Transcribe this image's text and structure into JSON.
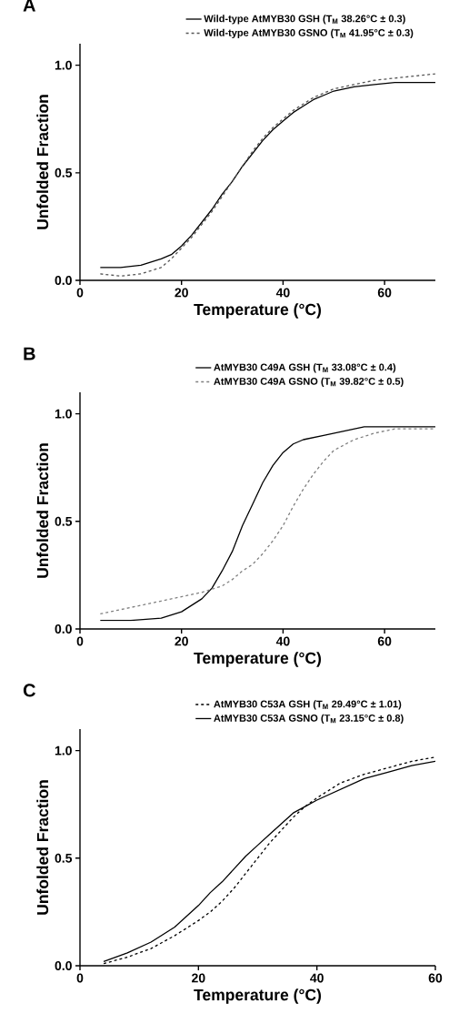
{
  "chart_data": [
    {
      "type": "line",
      "title": "A",
      "xlabel": "Temperature (°C)",
      "ylabel": "Unfolded Fraction",
      "xlim": [
        0,
        70
      ],
      "ylim": [
        0,
        1.1
      ],
      "xticks": [
        0,
        20,
        40,
        60
      ],
      "yticks": [
        {
          "value": 0,
          "label": "0.0"
        },
        {
          "value": 0.5,
          "label": "0.5"
        },
        {
          "value": 1,
          "label": "1.0"
        }
      ],
      "legend": "top",
      "marker": "none",
      "x": [
        4,
        8,
        12,
        16,
        18,
        20,
        22,
        24,
        26,
        28,
        30,
        32,
        34,
        36,
        38,
        40,
        42,
        44,
        46,
        48,
        50,
        54,
        58,
        62,
        66,
        70
      ],
      "series": [
        {
          "name": "Wild-type AtMYB30 GSH (T$_{M}$ 38.26°C ± 0.3)",
          "color": "#000000",
          "line_style": "solid",
          "values": [
            0.06,
            0.06,
            0.07,
            0.1,
            0.12,
            0.16,
            0.21,
            0.27,
            0.33,
            0.4,
            0.46,
            0.53,
            0.59,
            0.65,
            0.7,
            0.74,
            0.78,
            0.81,
            0.84,
            0.86,
            0.88,
            0.9,
            0.91,
            0.92,
            0.92,
            0.92
          ]
        },
        {
          "name": "Wild-type AtMYB30 GSNO (T$_{M}$ 41.95°C ± 0.3)",
          "color": "#555555",
          "line_style": "dashed",
          "values": [
            0.03,
            0.02,
            0.03,
            0.06,
            0.1,
            0.15,
            0.2,
            0.26,
            0.32,
            0.39,
            0.46,
            0.53,
            0.6,
            0.66,
            0.71,
            0.75,
            0.79,
            0.82,
            0.85,
            0.87,
            0.89,
            0.91,
            0.93,
            0.94,
            0.95,
            0.96
          ]
        }
      ]
    },
    {
      "type": "line",
      "title": "B",
      "xlabel": "Temperature (°C)",
      "ylabel": "Unfolded Fraction",
      "xlim": [
        0,
        70
      ],
      "ylim": [
        0,
        1.1
      ],
      "xticks": [
        0,
        20,
        40,
        60
      ],
      "yticks": [
        {
          "value": 0,
          "label": "0.0"
        },
        {
          "value": 0.5,
          "label": "0.5"
        },
        {
          "value": 1,
          "label": "1.0"
        }
      ],
      "legend": "top",
      "marker": "none",
      "series": [
        {
          "name": "AtMYB30 C49A GSH (T$_{M}$ 33.08°C ± 0.4)",
          "color": "#000000",
          "line_style": "solid",
          "x": [
            4,
            10,
            16,
            20,
            24,
            26,
            28,
            30,
            32,
            34,
            36,
            38,
            40,
            42,
            44,
            48,
            52,
            56,
            60,
            66,
            70
          ],
          "values": [
            0.04,
            0.04,
            0.05,
            0.08,
            0.14,
            0.19,
            0.27,
            0.36,
            0.48,
            0.58,
            0.68,
            0.76,
            0.82,
            0.86,
            0.88,
            0.9,
            0.92,
            0.94,
            0.94,
            0.94,
            0.94
          ]
        },
        {
          "name": "AtMYB30 C49A GSNO (T$_{M}$ 39.82°C ± 0.5)",
          "color": "#808080",
          "line_style": "dashed",
          "x": [
            4,
            10,
            16,
            20,
            24,
            28,
            30,
            32,
            34,
            36,
            38,
            40,
            42,
            44,
            46,
            48,
            50,
            54,
            58,
            62,
            66,
            70
          ],
          "values": [
            0.07,
            0.1,
            0.13,
            0.15,
            0.17,
            0.2,
            0.23,
            0.27,
            0.3,
            0.35,
            0.41,
            0.48,
            0.57,
            0.65,
            0.72,
            0.78,
            0.83,
            0.88,
            0.91,
            0.93,
            0.93,
            0.93
          ]
        }
      ]
    },
    {
      "type": "line",
      "title": "C",
      "xlabel": "Temperature (°C)",
      "ylabel": "Unfolded Fraction",
      "xlim": [
        0,
        60
      ],
      "ylim": [
        0,
        1.1
      ],
      "xticks": [
        0,
        20,
        40,
        60
      ],
      "yticks": [
        {
          "value": 0,
          "label": "0.0"
        },
        {
          "value": 0.5,
          "label": "0.5"
        },
        {
          "value": 1,
          "label": "1.0"
        }
      ],
      "legend": "top",
      "marker": "none",
      "x": [
        4,
        8,
        12,
        16,
        20,
        22,
        24,
        26,
        28,
        30,
        32,
        34,
        36,
        38,
        40,
        44,
        48,
        52,
        56,
        60
      ],
      "series": [
        {
          "name": "AtMYB30 C53A GSH (T$_{M}$ 29.49°C ± 1.01)",
          "color": "#000000",
          "line_style": "dashed",
          "values": [
            0.01,
            0.04,
            0.08,
            0.14,
            0.21,
            0.25,
            0.3,
            0.36,
            0.43,
            0.5,
            0.57,
            0.63,
            0.69,
            0.74,
            0.78,
            0.85,
            0.89,
            0.92,
            0.95,
            0.97
          ]
        },
        {
          "name": "AtMYB30 C53A GSNO (T$_{M}$ 23.15°C ± 0.8)",
          "color": "#000000",
          "line_style": "solid",
          "values": [
            0.02,
            0.06,
            0.11,
            0.18,
            0.28,
            0.34,
            0.39,
            0.45,
            0.51,
            0.56,
            0.61,
            0.66,
            0.71,
            0.74,
            0.77,
            0.82,
            0.87,
            0.9,
            0.93,
            0.95
          ]
        }
      ]
    }
  ]
}
